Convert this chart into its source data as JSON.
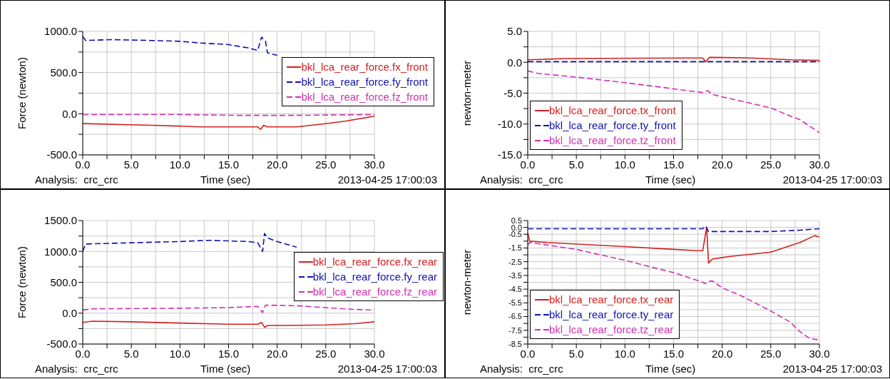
{
  "chart_data": [
    {
      "type": "line",
      "xlabel": "Time (sec)",
      "ylabel": "Force (newton)",
      "annotations": [
        "Analysis:  crc_crc",
        "2013-04-25 17:00:03"
      ],
      "grid": true,
      "legend": "top right",
      "xlim": [
        0,
        30
      ],
      "xticks": [
        {
          "value": 0,
          "label": "0.0"
        },
        {
          "value": 2.5,
          "label": null
        },
        {
          "value": 5,
          "label": "5.0"
        },
        {
          "value": 7.5,
          "label": null
        },
        {
          "value": 10,
          "label": "10.0"
        },
        {
          "value": 12.5,
          "label": null
        },
        {
          "value": 15,
          "label": "15.0"
        },
        {
          "value": 17.5,
          "label": null
        },
        {
          "value": 20,
          "label": "20.0"
        },
        {
          "value": 22.5,
          "label": null
        },
        {
          "value": 25,
          "label": "25.0"
        },
        {
          "value": 27.5,
          "label": null
        },
        {
          "value": 30,
          "label": "30.0"
        }
      ],
      "ylim": [
        -500,
        1000
      ],
      "yticks": [
        {
          "value": -500,
          "label": "-500.0"
        },
        {
          "value": -250,
          "label": null
        },
        {
          "value": 0,
          "label": "0.0"
        },
        {
          "value": 250,
          "label": null
        },
        {
          "value": 500,
          "label": "500.0"
        },
        {
          "value": 750,
          "label": null
        },
        {
          "value": 1000,
          "label": "1000.0"
        }
      ],
      "series": [
        {
          "name": "bkl_lca_rear_force.fx_front",
          "color": "#d42020",
          "line_style": "solid",
          "x": [
            0,
            7,
            10,
            12,
            18,
            18.3,
            18.6,
            19,
            22,
            25,
            27,
            28.5,
            30
          ],
          "values": [
            -120,
            -140,
            -150,
            -160,
            -160,
            -190,
            -140,
            -160,
            -160,
            -120,
            -90,
            -60,
            -30
          ]
        },
        {
          "name": "bkl_lca_rear_force.fy_front",
          "color": "#1010b0",
          "line_style": "dashed",
          "x": [
            0,
            0.3,
            3,
            7,
            10,
            12,
            15,
            17,
            18,
            18.4,
            18.8,
            19,
            20
          ],
          "values": [
            940,
            890,
            900,
            890,
            880,
            860,
            840,
            800,
            770,
            930,
            880,
            740,
            710
          ]
        },
        {
          "name": "bkl_lca_rear_force.fz_front",
          "color": "#d030b0",
          "line_style": "dashed",
          "x": [
            0,
            10,
            16,
            22,
            30
          ],
          "values": [
            -10,
            -10,
            -20,
            -20,
            -10
          ]
        }
      ]
    },
    {
      "type": "line",
      "xlabel": "Time (sec)",
      "ylabel": "newton-meter",
      "annotations": [
        "Analysis:  crc_crc",
        "2013-04-25 17:00:03"
      ],
      "grid": true,
      "legend": "bottom left",
      "xlim": [
        0,
        30
      ],
      "xticks": [
        {
          "value": 0,
          "label": "0.0"
        },
        {
          "value": 2.5,
          "label": null
        },
        {
          "value": 5,
          "label": "5.0"
        },
        {
          "value": 7.5,
          "label": null
        },
        {
          "value": 10,
          "label": "10.0"
        },
        {
          "value": 12.5,
          "label": null
        },
        {
          "value": 15,
          "label": "15.0"
        },
        {
          "value": 17.5,
          "label": null
        },
        {
          "value": 20,
          "label": "20.0"
        },
        {
          "value": 22.5,
          "label": null
        },
        {
          "value": 25,
          "label": "25.0"
        },
        {
          "value": 27.5,
          "label": null
        },
        {
          "value": 30,
          "label": "30.0"
        }
      ],
      "ylim": [
        -15,
        5
      ],
      "yticks": [
        {
          "value": -15,
          "label": "-15.0"
        },
        {
          "value": -12.5,
          "label": null
        },
        {
          "value": -10,
          "label": "-10.0"
        },
        {
          "value": -7.5,
          "label": null
        },
        {
          "value": -5,
          "label": "-5.0"
        },
        {
          "value": -2.5,
          "label": null
        },
        {
          "value": 0,
          "label": "0.0"
        },
        {
          "value": 2.5,
          "label": null
        },
        {
          "value": 5,
          "label": "5.0"
        }
      ],
      "series": [
        {
          "name": "bkl_lca_rear_force.tx_front",
          "color": "#d42020",
          "line_style": "solid",
          "x": [
            0,
            4,
            16,
            18,
            18.3,
            18.7,
            23,
            27,
            30
          ],
          "values": [
            0.4,
            0.6,
            0.7,
            0.7,
            0.1,
            0.8,
            0.7,
            0.4,
            0.3
          ]
        },
        {
          "name": "bkl_lca_rear_force.ty_front",
          "color": "#1010b0",
          "line_style": "dashed",
          "x": [
            0,
            30
          ],
          "values": [
            0.1,
            0.1
          ]
        },
        {
          "name": "bkl_lca_rear_force.tz_front",
          "color": "#d030b0",
          "line_style": "dashed",
          "x": [
            0,
            1,
            5,
            10,
            15,
            18,
            18.5,
            19,
            20,
            22,
            25,
            27,
            28,
            30
          ],
          "values": [
            -1.4,
            -1.8,
            -2.4,
            -3.3,
            -4.3,
            -4.9,
            -4.6,
            -5.2,
            -5.6,
            -6.3,
            -7.4,
            -8.7,
            -9.3,
            -11.4
          ]
        }
      ]
    },
    {
      "type": "line",
      "xlabel": "Time (sec)",
      "ylabel": "Force (newton)",
      "annotations": [
        "Analysis:  crc_crc",
        "2013-04-25 17:00:03"
      ],
      "grid": true,
      "legend": "right",
      "xlim": [
        0,
        30
      ],
      "xticks": [
        {
          "value": 0,
          "label": "0.0"
        },
        {
          "value": 2.5,
          "label": null
        },
        {
          "value": 5,
          "label": "5.0"
        },
        {
          "value": 7.5,
          "label": null
        },
        {
          "value": 10,
          "label": "10.0"
        },
        {
          "value": 12.5,
          "label": null
        },
        {
          "value": 15,
          "label": "15.0"
        },
        {
          "value": 17.5,
          "label": null
        },
        {
          "value": 20,
          "label": "20.0"
        },
        {
          "value": 22.5,
          "label": null
        },
        {
          "value": 25,
          "label": "25.0"
        },
        {
          "value": 27.5,
          "label": null
        },
        {
          "value": 30,
          "label": "30.0"
        }
      ],
      "ylim": [
        -500,
        1500
      ],
      "yticks": [
        {
          "value": -500,
          "label": "-500.0"
        },
        {
          "value": -250,
          "label": null
        },
        {
          "value": 0,
          "label": "0.0"
        },
        {
          "value": 250,
          "label": null
        },
        {
          "value": 500,
          "label": "500.0"
        },
        {
          "value": 750,
          "label": null
        },
        {
          "value": 1000,
          "label": "1000.0"
        },
        {
          "value": 1250,
          "label": null
        },
        {
          "value": 1500,
          "label": "1500.0"
        }
      ],
      "series": [
        {
          "name": "bkl_lca_rear_force.fx_rear",
          "color": "#d42020",
          "line_style": "solid",
          "x": [
            0,
            1,
            5,
            10,
            15,
            18,
            18.4,
            18.7,
            19,
            21,
            25,
            28,
            30
          ],
          "values": [
            -150,
            -130,
            -140,
            -160,
            -180,
            -180,
            -150,
            -230,
            -200,
            -200,
            -190,
            -170,
            -140
          ]
        },
        {
          "name": "bkl_lca_rear_force.fy_rear",
          "color": "#1010b0",
          "line_style": "dashed",
          "x": [
            0,
            0.3,
            5,
            10,
            13,
            17,
            18,
            18.5,
            18.7,
            19,
            20,
            22
          ],
          "values": [
            1000,
            1120,
            1140,
            1160,
            1180,
            1160,
            1140,
            1000,
            1290,
            1220,
            1160,
            1070
          ]
        },
        {
          "name": "bkl_lca_rear_force.fz_rear",
          "color": "#d030b0",
          "line_style": "dashed",
          "x": [
            0,
            1,
            10,
            15,
            18,
            18.5,
            18.8,
            22,
            25,
            28,
            30
          ],
          "values": [
            50,
            70,
            80,
            90,
            110,
            10,
            130,
            120,
            90,
            60,
            50
          ]
        }
      ]
    },
    {
      "type": "line",
      "xlabel": "Time (sec)",
      "ylabel": "newton-meter",
      "annotations": [
        "Analysis:  crc_crc",
        "2013-04-25 17:00:03"
      ],
      "grid": true,
      "legend": "bottom left",
      "xlim": [
        0,
        30
      ],
      "xticks": [
        {
          "value": 0,
          "label": "0.0"
        },
        {
          "value": 2.5,
          "label": null
        },
        {
          "value": 5,
          "label": "5.0"
        },
        {
          "value": 7.5,
          "label": null
        },
        {
          "value": 10,
          "label": "10.0"
        },
        {
          "value": 12.5,
          "label": null
        },
        {
          "value": 15,
          "label": "15.0"
        },
        {
          "value": 17.5,
          "label": null
        },
        {
          "value": 20,
          "label": "20.0"
        },
        {
          "value": 22.5,
          "label": null
        },
        {
          "value": 25,
          "label": "25.0"
        },
        {
          "value": 27.5,
          "label": null
        },
        {
          "value": 30,
          "label": "30.0"
        }
      ],
      "ylim": [
        -8.5,
        0.5
      ],
      "yticks": [
        {
          "value": -8.5,
          "label": "-8.5"
        },
        {
          "value": -8,
          "label": null
        },
        {
          "value": -7.5,
          "label": "-7.5"
        },
        {
          "value": -7,
          "label": null
        },
        {
          "value": -6.5,
          "label": "-6.5"
        },
        {
          "value": -6,
          "label": null
        },
        {
          "value": -5.5,
          "label": "-5.5"
        },
        {
          "value": -5,
          "label": null
        },
        {
          "value": -4.5,
          "label": "-4.5"
        },
        {
          "value": -4,
          "label": null
        },
        {
          "value": -3.5,
          "label": "-3.5"
        },
        {
          "value": -3,
          "label": null
        },
        {
          "value": -2.5,
          "label": "-2.5"
        },
        {
          "value": -2,
          "label": null
        },
        {
          "value": -1.5,
          "label": "-1.5"
        },
        {
          "value": -1,
          "label": null
        },
        {
          "value": -0.5,
          "label": "-0.5"
        },
        {
          "value": 0,
          "label": "0.0"
        },
        {
          "value": 0.5,
          "label": "0.5"
        }
      ],
      "series": [
        {
          "name": "bkl_lca_rear_force.tx_rear",
          "color": "#d42020",
          "line_style": "solid",
          "x": [
            0,
            0.2,
            2,
            10,
            15,
            17.5,
            18,
            18.4,
            18.6,
            19,
            21,
            25,
            28,
            29.5,
            30
          ],
          "values": [
            -0.4,
            -1,
            -1.1,
            -1.4,
            -1.6,
            -1.7,
            -1.7,
            0,
            -2.6,
            -2.3,
            -2.1,
            -1.8,
            -1.1,
            -0.6,
            -0.7
          ]
        },
        {
          "name": "bkl_lca_rear_force.ty_rear",
          "color": "#1010b0",
          "line_style": "dashed",
          "x": [
            0,
            18,
            18.3,
            18.6,
            25,
            28,
            30
          ],
          "values": [
            -0.1,
            -0.1,
            0.1,
            -0.3,
            -0.3,
            -0.2,
            -0.1
          ]
        },
        {
          "name": "bkl_lca_rear_force.tz_rear",
          "color": "#d030b0",
          "line_style": "dashed",
          "x": [
            0,
            0.2,
            5,
            10,
            15,
            18,
            18.3,
            18.8,
            19,
            20,
            22,
            25,
            27,
            28,
            29,
            30
          ],
          "values": [
            -1.3,
            -1.1,
            -1.6,
            -2.4,
            -3.3,
            -4,
            -4.1,
            -3.9,
            -3.9,
            -4.4,
            -5,
            -6.1,
            -6.9,
            -7.6,
            -8.1,
            -8.2
          ]
        }
      ]
    }
  ]
}
